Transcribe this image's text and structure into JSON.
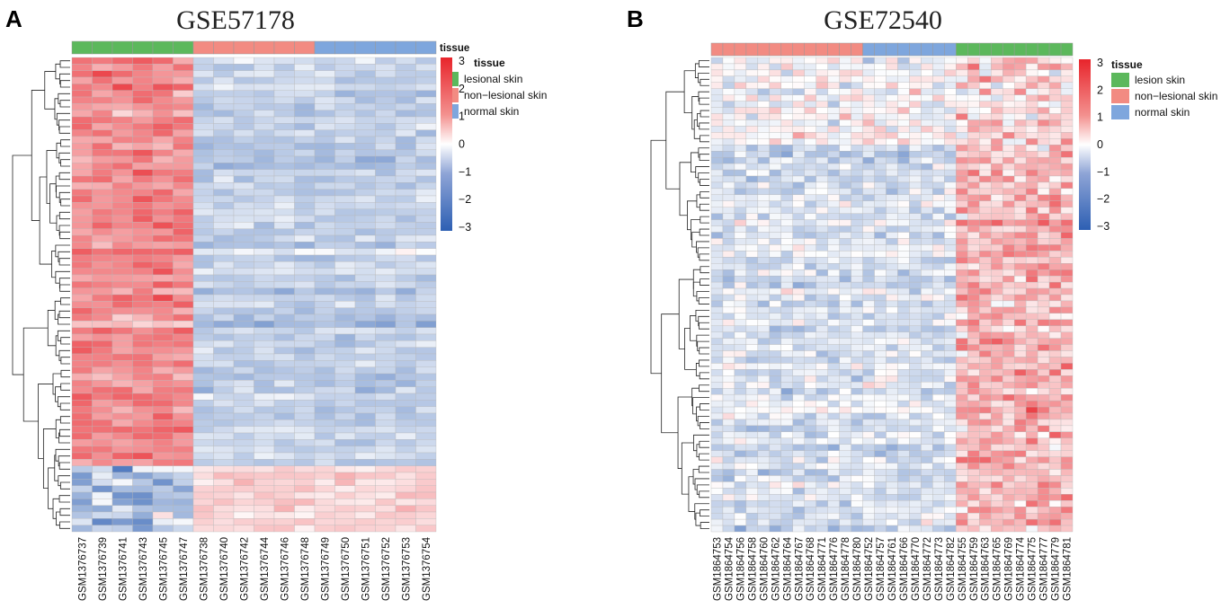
{
  "chart_data": [
    {
      "type": "heatmap",
      "panel_label": "A",
      "title": "GSE57178",
      "annotation_title": "tissue",
      "columns": [
        "GSM1376737",
        "GSM1376739",
        "GSM1376741",
        "GSM1376743",
        "GSM1376745",
        "GSM1376747",
        "GSM1376738",
        "GSM1376740",
        "GSM1376742",
        "GSM1376744",
        "GSM1376746",
        "GSM1376748",
        "GSM1376749",
        "GSM1376750",
        "GSM1376751",
        "GSM1376752",
        "GSM1376753",
        "GSM1376754"
      ],
      "column_groups": [
        "lesional skin",
        "lesional skin",
        "lesional skin",
        "lesional skin",
        "lesional skin",
        "lesional skin",
        "non-lesional skin",
        "non-lesional skin",
        "non-lesional skin",
        "non-lesional skin",
        "non-lesional skin",
        "non-lesional skin",
        "normal skin",
        "normal skin",
        "normal skin",
        "normal skin",
        "normal skin",
        "normal skin"
      ],
      "legend": {
        "title": "tissue",
        "entries": [
          {
            "label": "lesional skin",
            "color": "#5cb85c"
          },
          {
            "label": "non−lesional skin",
            "color": "#f28b82"
          },
          {
            "label": "normal skin",
            "color": "#7ea6dd"
          }
        ]
      },
      "colorscale": {
        "min": -3,
        "max": 3,
        "ticks": [
          "3",
          "2",
          "1",
          "0",
          "−1",
          "−2",
          "−3"
        ],
        "low": "#2d5fb3",
        "mid": "#ffffff",
        "high": "#e8242b"
      },
      "n_rows": 72,
      "row_pattern": {
        "up_in_lesional_rows": 62,
        "down_in_lesional_rows": 10
      },
      "dendrogram": "rows"
    },
    {
      "type": "heatmap",
      "panel_label": "B",
      "title": "GSE72540",
      "annotation_title": "tissue",
      "columns": [
        "GSM1864753",
        "GSM1864754",
        "GSM1864756",
        "GSM1864758",
        "GSM1864760",
        "GSM1864762",
        "GSM1864764",
        "GSM1864767",
        "GSM1864768",
        "GSM1864771",
        "GSM1864776",
        "GSM1864778",
        "GSM1864780",
        "GSM1864752",
        "GSM1864757",
        "GSM1864761",
        "GSM1864766",
        "GSM1864770",
        "GSM1864772",
        "GSM1864773",
        "GSM1864782",
        "GSM1864755",
        "GSM1864759",
        "GSM1864763",
        "GSM1864765",
        "GSM1864769",
        "GSM1864774",
        "GSM1864775",
        "GSM1864777",
        "GSM1864779",
        "GSM1864781"
      ],
      "column_groups": [
        "non-lesional skin",
        "non-lesional skin",
        "non-lesional skin",
        "non-lesional skin",
        "non-lesional skin",
        "non-lesional skin",
        "non-lesional skin",
        "non-lesional skin",
        "non-lesional skin",
        "non-lesional skin",
        "non-lesional skin",
        "non-lesional skin",
        "non-lesional skin",
        "normal skin",
        "normal skin",
        "normal skin",
        "normal skin",
        "normal skin",
        "normal skin",
        "normal skin",
        "normal skin",
        "lesion skin",
        "lesion skin",
        "lesion skin",
        "lesion skin",
        "lesion skin",
        "lesion skin",
        "lesion skin",
        "lesion skin",
        "lesion skin",
        "lesion skin"
      ],
      "legend": {
        "title": "tissue",
        "entries": [
          {
            "label": "lesion skin",
            "color": "#5cb85c"
          },
          {
            "label": "non−lesional skin",
            "color": "#f28b82"
          },
          {
            "label": "normal skin",
            "color": "#7ea6dd"
          }
        ]
      },
      "colorscale": {
        "min": -3,
        "max": 3,
        "ticks": [
          "3",
          "2",
          "1",
          "0",
          "−1",
          "−2",
          "−3"
        ],
        "low": "#2d5fb3",
        "mid": "#ffffff",
        "high": "#e8242b"
      },
      "n_rows": 76,
      "row_pattern": {
        "noisy_top_rows": 14,
        "up_in_lesion_rows": 62
      },
      "dendrogram": "rows"
    }
  ]
}
